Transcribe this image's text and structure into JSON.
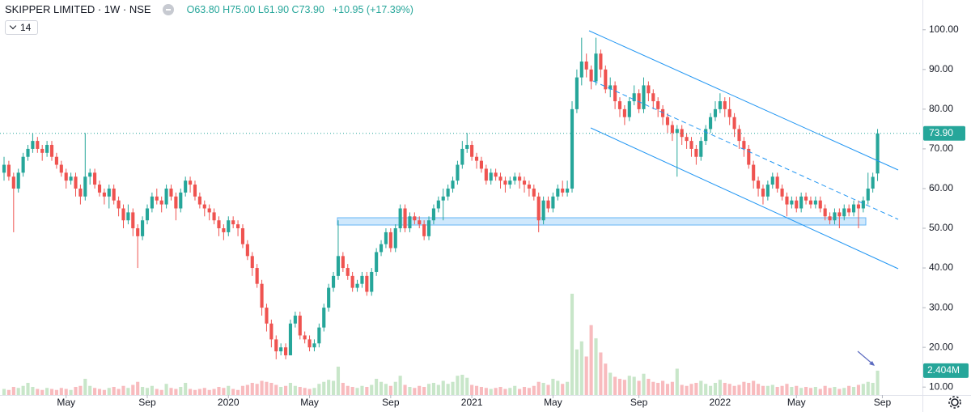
{
  "chart_data": {
    "type": "candlestick",
    "title": "SKIPPER LIMITED · 1W · NSE",
    "ohlc_text": "O63.80 H75.00 L61.90 C73.90",
    "change_text": "+10.95 (+17.39%)",
    "indicator_input": "14",
    "last_price_label": "73.90",
    "volume_last_label": "2.404M",
    "colors": {
      "up": "#26a69a",
      "down": "#ef5350",
      "volume_up": "#c8e6c9",
      "volume_down": "#f8bbbe"
    },
    "grid": false,
    "xlim": [
      -0.85,
      192.4
    ],
    "xticks": [
      {
        "value": 13,
        "label": "May"
      },
      {
        "value": 30,
        "label": "Sep"
      },
      {
        "value": 47,
        "label": "2020"
      },
      {
        "value": 64,
        "label": "May"
      },
      {
        "value": 81,
        "label": "Sep"
      },
      {
        "value": 98,
        "label": "2021"
      },
      {
        "value": 115,
        "label": "May"
      },
      {
        "value": 133,
        "label": "Sep"
      },
      {
        "value": 150,
        "label": "2022"
      },
      {
        "value": 166,
        "label": "May"
      },
      {
        "value": 184,
        "label": "Sep"
      }
    ],
    "ylim": [
      8,
      107.5
    ],
    "yticks": [
      {
        "value": 10,
        "label": "10.00"
      },
      {
        "value": 20,
        "label": "20.00"
      },
      {
        "value": 30,
        "label": "30.00"
      },
      {
        "value": 40,
        "label": "40.00"
      },
      {
        "value": 50,
        "label": "50.00"
      },
      {
        "value": 60,
        "label": "60.00"
      },
      {
        "value": 70,
        "label": "70.00"
      },
      {
        "value": 80,
        "label": "80.00"
      },
      {
        "value": 90,
        "label": "90.00"
      },
      {
        "value": 100,
        "label": "100.00"
      }
    ],
    "volume_lim": [
      0,
      39
    ],
    "open": [
      64,
      66,
      63,
      60,
      64,
      68,
      70,
      72,
      70,
      69,
      71,
      68,
      66,
      64,
      62,
      63,
      60,
      58,
      63,
      64,
      61,
      59,
      58,
      60,
      57,
      55,
      52,
      54,
      50,
      48,
      52,
      55,
      58,
      57,
      56,
      60,
      58,
      55,
      59,
      62,
      61,
      58,
      56,
      55,
      54,
      52,
      50,
      49,
      52,
      51,
      50,
      46,
      43,
      40,
      36,
      30,
      26,
      22,
      19,
      20,
      18,
      26,
      28,
      23,
      22,
      20,
      21,
      25,
      30,
      35,
      38,
      43,
      40,
      38,
      35,
      36,
      38,
      34,
      39,
      44,
      46,
      49,
      45,
      50,
      55,
      50,
      53,
      52,
      51,
      48,
      52,
      55,
      57,
      58,
      60,
      62,
      66,
      70,
      71,
      68,
      67,
      65,
      62,
      64,
      63,
      62,
      61,
      62,
      63,
      62,
      61,
      60,
      58,
      52,
      57,
      55,
      58,
      60,
      59,
      60,
      80,
      88,
      92,
      90,
      87,
      94,
      90,
      85,
      86,
      82,
      80,
      78,
      82,
      84,
      80,
      86,
      84,
      82,
      80,
      78,
      76,
      74,
      75,
      73,
      72,
      70,
      68,
      72,
      75,
      78,
      80,
      82,
      80,
      78,
      75,
      72,
      70,
      66,
      62,
      60,
      58,
      61,
      63,
      60,
      58,
      56,
      57,
      55,
      58,
      57,
      56,
      57,
      55,
      53,
      52,
      54,
      53,
      55,
      54,
      56,
      55,
      57,
      60,
      63.8
    ],
    "high": [
      68,
      67,
      64,
      65,
      69,
      71,
      74,
      73,
      71,
      72,
      72,
      69,
      67,
      65,
      64,
      64,
      61,
      74,
      65,
      65,
      62,
      60,
      61,
      61,
      58,
      56,
      56,
      55,
      51,
      53,
      56,
      59,
      60,
      58,
      61,
      61,
      59,
      60,
      63,
      63,
      62,
      59,
      57,
      56,
      55,
      53,
      51,
      53,
      53,
      52,
      51,
      47,
      44,
      41,
      37,
      31,
      27,
      23,
      21,
      21,
      27,
      29,
      29,
      24,
      23,
      22,
      26,
      31,
      36,
      39,
      52,
      44,
      41,
      39,
      37,
      39,
      39,
      40,
      45,
      47,
      50,
      50,
      51,
      56,
      56,
      54,
      54,
      53,
      52,
      53,
      56,
      58,
      60,
      61,
      63,
      67,
      72,
      74,
      72,
      69,
      68,
      66,
      65,
      65,
      64,
      63,
      63,
      64,
      64,
      63,
      62,
      61,
      59,
      58,
      58,
      59,
      61,
      62,
      62,
      82,
      90,
      98,
      94,
      91,
      98,
      95,
      91,
      88,
      87,
      83,
      81,
      83,
      86,
      85,
      88,
      87,
      85,
      83,
      81,
      79,
      77,
      76,
      76,
      74,
      73,
      71,
      73,
      76,
      79,
      82,
      84,
      83,
      83,
      79,
      76,
      73,
      71,
      67,
      63,
      61,
      62,
      64,
      64,
      61,
      59,
      58,
      58,
      59,
      59,
      58,
      58,
      58,
      56,
      54,
      55,
      55,
      56,
      56,
      57,
      57,
      58,
      64,
      64,
      75
    ],
    "low": [
      62,
      62,
      49,
      59,
      63,
      67,
      69,
      69,
      67,
      68,
      67,
      65,
      63,
      60,
      61,
      58,
      56,
      57,
      61,
      60,
      58,
      56,
      55,
      56,
      53,
      50,
      51,
      48,
      40,
      47,
      51,
      54,
      56,
      54,
      55,
      57,
      52,
      54,
      58,
      59,
      57,
      55,
      53,
      52,
      51,
      48,
      47,
      48,
      50,
      48,
      45,
      42,
      38,
      35,
      28,
      24,
      20,
      17,
      18,
      17,
      18,
      25,
      22,
      21,
      19,
      19,
      20,
      24,
      29,
      34,
      37,
      39,
      37,
      34,
      34,
      35,
      33,
      33,
      38,
      43,
      45,
      44,
      44,
      49,
      49,
      49,
      51,
      50,
      47,
      47,
      51,
      54,
      52,
      57,
      59,
      61,
      65,
      69,
      67,
      65,
      64,
      61,
      61,
      62,
      60,
      59,
      60,
      61,
      60,
      59,
      58,
      57,
      49,
      51,
      54,
      54,
      57,
      58,
      58,
      59,
      79,
      86,
      88,
      85,
      86,
      88,
      84,
      83,
      80,
      78,
      76,
      77,
      81,
      79,
      79,
      82,
      80,
      78,
      76,
      74,
      72,
      63,
      71,
      70,
      68,
      66,
      67,
      71,
      74,
      77,
      79,
      78,
      76,
      73,
      70,
      68,
      65,
      60,
      58,
      56,
      57,
      60,
      59,
      57,
      53,
      55,
      54,
      54,
      56,
      55,
      55,
      54,
      52,
      51,
      51,
      50,
      52,
      53,
      53,
      50,
      54,
      56,
      59,
      61.9
    ],
    "close": [
      66,
      63,
      60,
      64,
      68,
      70,
      72,
      70,
      69,
      71,
      68,
      66,
      64,
      62,
      63,
      60,
      58,
      63,
      64,
      61,
      59,
      58,
      60,
      57,
      55,
      52,
      54,
      50,
      48,
      52,
      55,
      58,
      57,
      56,
      60,
      58,
      55,
      59,
      62,
      61,
      58,
      56,
      55,
      54,
      52,
      50,
      49,
      52,
      51,
      50,
      46,
      43,
      40,
      36,
      30,
      26,
      22,
      19,
      20,
      18,
      26,
      28,
      23,
      22,
      20,
      21,
      25,
      30,
      35,
      38,
      43,
      40,
      38,
      35,
      36,
      38,
      34,
      39,
      44,
      46,
      49,
      45,
      50,
      55,
      50,
      53,
      52,
      51,
      48,
      52,
      55,
      57,
      58,
      60,
      62,
      66,
      70,
      71,
      68,
      67,
      65,
      62,
      64,
      63,
      62,
      61,
      62,
      63,
      62,
      61,
      60,
      58,
      52,
      57,
      55,
      58,
      60,
      59,
      60,
      80,
      88,
      92,
      90,
      87,
      94,
      90,
      85,
      86,
      82,
      80,
      78,
      82,
      84,
      80,
      86,
      84,
      82,
      80,
      78,
      76,
      74,
      75,
      73,
      72,
      70,
      68,
      72,
      75,
      78,
      80,
      82,
      80,
      78,
      75,
      72,
      70,
      66,
      62,
      60,
      58,
      61,
      63,
      60,
      58,
      56,
      57,
      55,
      58,
      57,
      56,
      57,
      55,
      53,
      52,
      54,
      53,
      55,
      54,
      56,
      55,
      57,
      60,
      62.95,
      73.9
    ],
    "volume": [
      0.6,
      0.5,
      0.8,
      0.7,
      0.9,
      1.2,
      0.8,
      0.6,
      0.5,
      0.7,
      0.6,
      0.5,
      0.7,
      0.6,
      0.5,
      0.8,
      0.9,
      1.6,
      0.9,
      0.7,
      0.6,
      0.5,
      0.7,
      0.8,
      0.6,
      0.9,
      0.7,
      1.0,
      1.3,
      0.8,
      0.7,
      0.9,
      0.6,
      0.5,
      1.1,
      0.7,
      0.6,
      0.8,
      1.2,
      0.6,
      0.5,
      0.6,
      0.7,
      0.5,
      0.6,
      0.8,
      0.7,
      0.9,
      0.6,
      0.5,
      0.9,
      1.0,
      1.2,
      1.1,
      1.4,
      1.3,
      1.2,
      1.0,
      0.8,
      0.9,
      1.2,
      0.9,
      0.8,
      0.7,
      0.6,
      0.7,
      1.1,
      1.3,
      1.5,
      1.4,
      2.8,
      1.2,
      0.9,
      0.8,
      0.7,
      0.9,
      0.8,
      1.0,
      1.6,
      1.3,
      1.1,
      0.9,
      1.3,
      1.9,
      1.0,
      0.8,
      0.7,
      0.9,
      0.8,
      1.1,
      1.2,
      1.0,
      1.4,
      1.1,
      1.3,
      1.9,
      2.0,
      1.7,
      1.0,
      0.9,
      0.8,
      0.7,
      0.6,
      0.7,
      0.8,
      0.6,
      0.7,
      0.9,
      0.6,
      0.8,
      0.7,
      0.9,
      1.3,
      1.2,
      1.0,
      1.6,
      1.4,
      1.1,
      1.3,
      10.0,
      4.5,
      5.3,
      3.8,
      6.9,
      5.6,
      4.2,
      3.1,
      2.2,
      1.8,
      1.6,
      1.5,
      1.9,
      1.8,
      1.4,
      2.1,
      1.6,
      1.3,
      1.2,
      1.4,
      1.1,
      1.3,
      2.6,
      1.0,
      0.9,
      1.1,
      1.2,
      1.4,
      1.1,
      0.9,
      1.2,
      1.5,
      1.2,
      1.1,
      0.9,
      1.0,
      1.3,
      1.2,
      1.4,
      1.1,
      0.9,
      0.9,
      1.0,
      0.8,
      0.9,
      1.1,
      0.8,
      0.9,
      0.7,
      0.8,
      0.7,
      0.8,
      0.6,
      0.9,
      0.7,
      0.8,
      0.6,
      0.7,
      0.9,
      0.8,
      1.0,
      1.1,
      1.3,
      1.2,
      2.404
    ]
  }
}
